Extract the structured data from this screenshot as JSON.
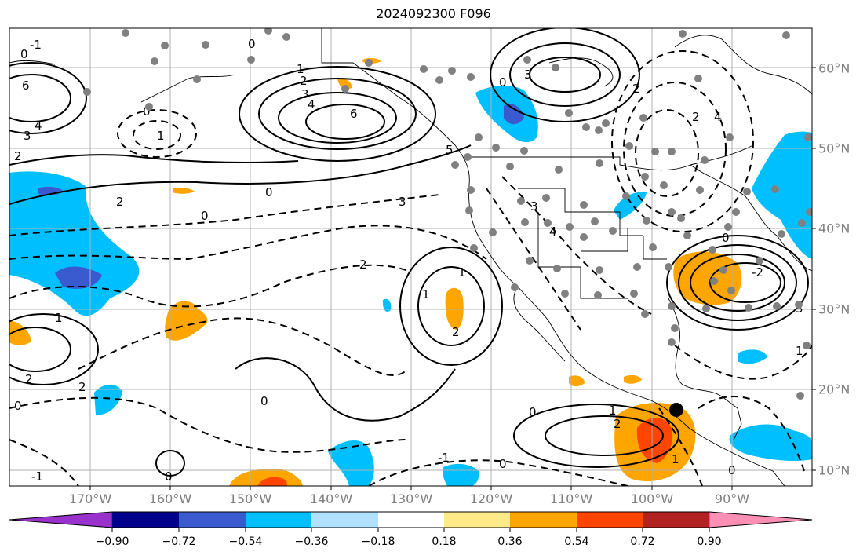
{
  "title": "2024092300 F096",
  "lon_labels": [
    "170°W",
    "160°W",
    "150°W",
    "140°W",
    "130°W",
    "120°W",
    "110°W",
    "100°W",
    "90°W"
  ],
  "lat_labels": [
    "60°N",
    "50°N",
    "40°N",
    "30°N",
    "20°N",
    "10°N"
  ],
  "colorbar": {
    "ticks": [
      "−0.90",
      "−0.72",
      "−0.54",
      "−0.36",
      "−0.18",
      "0.18",
      "0.36",
      "0.54",
      "0.72",
      "0.90"
    ],
    "colors": [
      "#9932CC",
      "#00008B",
      "#3A5BD0",
      "#00BFFF",
      "#B0E2FF",
      "#FFFFFF",
      "#FFEA8A",
      "#FFA500",
      "#FF4500",
      "#B22222",
      "#FF8FB5"
    ]
  },
  "contour_labels": [
    "-1",
    "0",
    "6",
    "4",
    "3",
    "1",
    "0",
    "2",
    "3",
    "4",
    "6",
    "2",
    "1",
    "0",
    "2",
    "0",
    "3",
    "5",
    "4",
    "2",
    "3",
    "0",
    "2",
    "0",
    "3",
    "4",
    "-2",
    "2",
    "1",
    "0",
    "1",
    "2",
    "0",
    "2",
    "2",
    "1",
    "0",
    "0",
    "1",
    "2",
    "0",
    "-1",
    "1",
    "0",
    "3",
    "1",
    "-1",
    "0"
  ]
}
